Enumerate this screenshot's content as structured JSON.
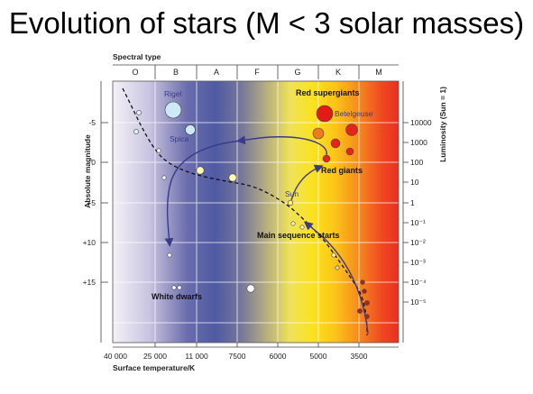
{
  "title": "Evolution of stars (M < 3 solar masses)",
  "diagram": {
    "spectral_type_label": "Spectral type",
    "spectral_classes": [
      "O",
      "B",
      "A",
      "F",
      "G",
      "K",
      "M"
    ],
    "y_left_label": "Absolute magnitude",
    "y_left_ticks": [
      "-5",
      "0",
      "+5",
      "+10",
      "+15"
    ],
    "y_right_label": "Luminosity (Sun = 1)",
    "y_right_ticks": [
      "10000",
      "1000",
      "100",
      "10",
      "1",
      "10⁻¹",
      "10⁻²",
      "10⁻³",
      "10⁻⁴",
      "10⁻⁵"
    ],
    "x_label": "Surface temperature/K",
    "x_ticks": [
      "40 000",
      "25 000",
      "11 000",
      "7500",
      "6000",
      "5000",
      "3500"
    ],
    "labels": {
      "rigel": "Rigel",
      "spica": "Spica",
      "betelgeuse": "Betelgeuse",
      "sun": "Sun",
      "red_supergiants": "Red supergiants",
      "red_giants": "Red giants",
      "main_sequence_starts": "Main sequence starts",
      "white_dwarfs": "White dwarfs"
    }
  }
}
